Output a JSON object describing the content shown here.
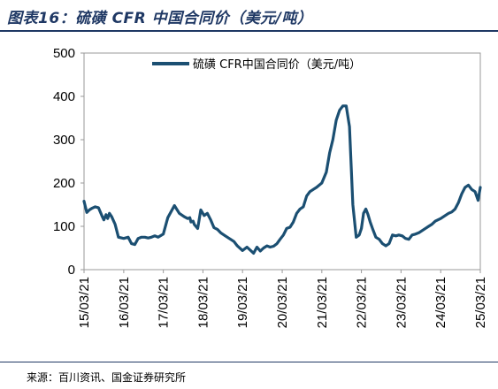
{
  "header": {
    "title": "图表16：硫磺 CFR 中国合同价（美元/吨）"
  },
  "footer": {
    "source": "来源：百川资讯、国金证券研究所"
  },
  "chart_data": {
    "type": "line",
    "title": "",
    "xlabel": "",
    "ylabel": "",
    "ylim": [
      0,
      500
    ],
    "yticks": [
      0,
      100,
      200,
      300,
      400,
      500
    ],
    "xlim": [
      "2015-03-21",
      "2025-03-21"
    ],
    "xticks": [
      "15/03/21",
      "16/03/21",
      "17/03/21",
      "18/03/21",
      "19/03/21",
      "20/03/21",
      "21/03/21",
      "22/03/21",
      "23/03/21",
      "24/03/21",
      "25/03/21"
    ],
    "legend": {
      "position": "top-center"
    },
    "grid": false,
    "series": [
      {
        "name": "硫磺 CFR中国合同价（美元/吨）",
        "color": "#1b4f72",
        "x": [
          "2015-03-21",
          "2015-04-15",
          "2015-05-10",
          "2015-06-05",
          "2015-07-01",
          "2015-08-01",
          "2015-09-01",
          "2015-09-20",
          "2015-10-10",
          "2015-10-25",
          "2015-11-10",
          "2015-12-01",
          "2016-01-01",
          "2016-02-01",
          "2016-03-21",
          "2016-05-01",
          "2016-06-01",
          "2016-07-01",
          "2016-08-01",
          "2016-09-01",
          "2016-10-01",
          "2016-11-01",
          "2016-12-01",
          "2017-01-01",
          "2017-02-01",
          "2017-03-21",
          "2017-05-01",
          "2017-07-01",
          "2017-08-15",
          "2017-10-01",
          "2017-11-01",
          "2017-11-20",
          "2017-12-01",
          "2017-12-20",
          "2018-01-01",
          "2018-02-01",
          "2018-03-01",
          "2018-04-01",
          "2018-05-01",
          "2018-06-01",
          "2018-07-01",
          "2018-08-01",
          "2018-09-01",
          "2018-10-01",
          "2018-11-01",
          "2018-12-01",
          "2019-01-01",
          "2019-02-01",
          "2019-03-21",
          "2019-05-01",
          "2019-07-01",
          "2019-08-01",
          "2019-09-01",
          "2019-10-01",
          "2019-11-01",
          "2019-12-01",
          "2020-01-01",
          "2020-02-01",
          "2020-03-01",
          "2020-04-01",
          "2020-05-01",
          "2020-06-01",
          "2020-07-01",
          "2020-08-01",
          "2020-09-01",
          "2020-10-01",
          "2020-11-01",
          "2020-12-01",
          "2021-01-01",
          "2021-02-01",
          "2021-03-21",
          "2021-05-01",
          "2021-06-01",
          "2021-07-01",
          "2021-08-01",
          "2021-09-01",
          "2021-10-01",
          "2021-11-01",
          "2021-12-01",
          "2022-01-01",
          "2022-02-01",
          "2022-03-01",
          "2022-03-21",
          "2022-04-10",
          "2022-05-01",
          "2022-05-20",
          "2022-06-10",
          "2022-07-01",
          "2022-08-01",
          "2022-09-01",
          "2022-10-01",
          "2022-11-01",
          "2022-12-01",
          "2023-01-01",
          "2023-02-01",
          "2023-03-01",
          "2023-04-01",
          "2023-05-01",
          "2023-06-01",
          "2023-07-01",
          "2023-08-01",
          "2023-09-01",
          "2023-10-01",
          "2023-11-01",
          "2023-12-01",
          "2024-01-01",
          "2024-02-01",
          "2024-03-21",
          "2024-05-01",
          "2024-06-01",
          "2024-07-01",
          "2024-08-01",
          "2024-09-01",
          "2024-10-01",
          "2024-11-01",
          "2024-12-01",
          "2025-01-01",
          "2025-02-01",
          "2025-03-01",
          "2025-03-21"
        ],
        "y": [
          158,
          132,
          138,
          142,
          145,
          143,
          125,
          115,
          127,
          118,
          130,
          122,
          105,
          75,
          72,
          75,
          60,
          58,
          72,
          75,
          75,
          73,
          75,
          78,
          75,
          82,
          120,
          148,
          130,
          122,
          118,
          120,
          110,
          112,
          104,
          95,
          138,
          125,
          130,
          115,
          97,
          93,
          85,
          80,
          75,
          70,
          65,
          55,
          44,
          52,
          38,
          52,
          43,
          50,
          55,
          52,
          54,
          60,
          70,
          80,
          95,
          98,
          110,
          130,
          140,
          145,
          170,
          180,
          185,
          190,
          200,
          225,
          270,
          300,
          345,
          368,
          378,
          378,
          330,
          150,
          75,
          80,
          95,
          130,
          140,
          128,
          110,
          95,
          75,
          70,
          60,
          55,
          60,
          80,
          78,
          80,
          78,
          72,
          70,
          80,
          82,
          85,
          90,
          95,
          100,
          105,
          112,
          118,
          125,
          130,
          133,
          140,
          155,
          175,
          190,
          195,
          185,
          180,
          160,
          190
        ]
      }
    ]
  }
}
